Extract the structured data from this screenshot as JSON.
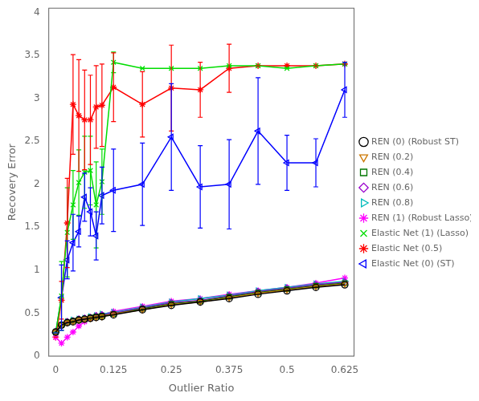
{
  "chart_data": {
    "type": "line",
    "xlabel": "Outlier Ratio",
    "ylabel": "Recovery Error",
    "x": [
      0,
      0.0125,
      0.025,
      0.0375,
      0.05,
      0.0625,
      0.075,
      0.0875,
      0.1,
      0.125,
      0.1875,
      0.25,
      0.3125,
      0.375,
      0.4375,
      0.5,
      0.5625,
      0.625
    ],
    "xlim": [
      -0.015,
      0.645
    ],
    "xticks": [
      0,
      0.125,
      0.25,
      0.375,
      0.5,
      0.625
    ],
    "ylim": [
      0,
      4.05
    ],
    "yticks": [
      0,
      0.5,
      1,
      1.5,
      2,
      2.5,
      3,
      3.5,
      4
    ],
    "grid": false,
    "legend": "right",
    "series": [
      {
        "name": "REN (0) (Robust ST)",
        "color": "#000000",
        "marker": "circle",
        "values": [
          0.28,
          0.36,
          0.39,
          0.4,
          0.42,
          0.43,
          0.44,
          0.45,
          0.46,
          0.48,
          0.54,
          0.59,
          0.63,
          0.67,
          0.72,
          0.76,
          0.8,
          0.83
        ]
      },
      {
        "name": "REN (0.2)",
        "color": "#cc7700",
        "marker": "triangle-down",
        "values": [
          0.28,
          0.36,
          0.39,
          0.4,
          0.42,
          0.43,
          0.44,
          0.45,
          0.46,
          0.49,
          0.54,
          0.6,
          0.63,
          0.68,
          0.73,
          0.77,
          0.81,
          0.84
        ]
      },
      {
        "name": "REN (0.4)",
        "color": "#007700",
        "marker": "square",
        "values": [
          0.28,
          0.36,
          0.39,
          0.41,
          0.42,
          0.43,
          0.45,
          0.46,
          0.47,
          0.49,
          0.55,
          0.61,
          0.64,
          0.69,
          0.74,
          0.78,
          0.82,
          0.85
        ]
      },
      {
        "name": "REN (0.6)",
        "color": "#9900cc",
        "marker": "diamond",
        "values": [
          0.28,
          0.36,
          0.4,
          0.41,
          0.43,
          0.44,
          0.45,
          0.47,
          0.48,
          0.5,
          0.56,
          0.62,
          0.65,
          0.7,
          0.75,
          0.79,
          0.83,
          0.86
        ]
      },
      {
        "name": "REN (0.8)",
        "color": "#00bbbb",
        "marker": "triangle-right",
        "values": [
          0.28,
          0.36,
          0.4,
          0.42,
          0.43,
          0.44,
          0.46,
          0.47,
          0.49,
          0.51,
          0.57,
          0.63,
          0.67,
          0.71,
          0.76,
          0.8,
          0.84,
          0.87
        ]
      },
      {
        "name": "REN (1) (Robust Lasso)",
        "color": "#ff00ff",
        "marker": "star",
        "values": [
          0.22,
          0.15,
          0.22,
          0.28,
          0.35,
          0.4,
          0.44,
          0.46,
          0.48,
          0.52,
          0.58,
          0.64,
          0.67,
          0.72,
          0.76,
          0.8,
          0.85,
          0.91
        ]
      },
      {
        "name": "Elastic Net (1) (Lasso)",
        "color": "#00dd00",
        "marker": "x",
        "values": [
          0.27,
          0.7,
          1.44,
          1.76,
          2.02,
          2.14,
          2.16,
          1.76,
          2.03,
          3.42,
          3.35,
          3.35,
          3.35,
          3.38,
          3.38,
          3.35,
          3.38,
          3.4
        ],
        "yerr": [
          0.0,
          0.4,
          0.52,
          0.4,
          0.38,
          0.42,
          0.4,
          0.5,
          0.38,
          0.12,
          0.0,
          0.0,
          0.0,
          0.0,
          0.0,
          0.0,
          0.0,
          0.0
        ]
      },
      {
        "name": "Elastic Net (0.5)",
        "color": "#ff0000",
        "marker": "star",
        "values": [
          0.22,
          0.65,
          1.55,
          2.93,
          2.8,
          2.75,
          2.75,
          2.9,
          2.92,
          3.13,
          2.93,
          3.12,
          3.1,
          3.35,
          3.38,
          3.38,
          3.38,
          3.4
        ],
        "yerr": [
          0.0,
          0.22,
          0.52,
          0.58,
          0.65,
          0.58,
          0.52,
          0.48,
          0.48,
          0.4,
          0.38,
          0.5,
          0.32,
          0.28,
          0.0,
          0.0,
          0.0,
          0.0
        ]
      },
      {
        "name": "Elastic Net (0) (ST)",
        "color": "#0000ff",
        "marker": "triangle-left",
        "values": [
          0.27,
          0.68,
          1.12,
          1.32,
          1.45,
          1.85,
          1.68,
          1.4,
          1.87,
          1.93,
          2.0,
          2.55,
          1.97,
          2.0,
          2.62,
          2.25,
          2.25,
          3.1
        ],
        "yerr": [
          0.0,
          0.38,
          0.22,
          0.33,
          0.18,
          0.28,
          0.28,
          0.28,
          0.33,
          0.48,
          0.48,
          0.62,
          0.48,
          0.52,
          0.62,
          0.32,
          0.28,
          0.32
        ]
      }
    ]
  }
}
